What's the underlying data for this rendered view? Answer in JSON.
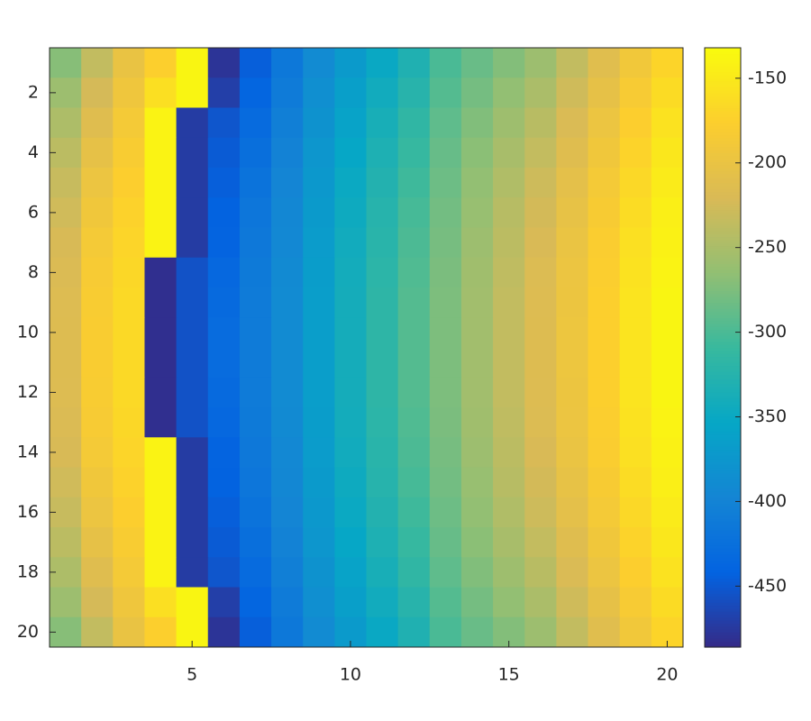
{
  "chart_data": {
    "type": "heatmap",
    "xlim": [
      0.5,
      20.5
    ],
    "ylim": [
      0.5,
      20.5
    ],
    "y_reversed": true,
    "xticks": [
      5,
      10,
      15,
      20
    ],
    "yticks": [
      2,
      4,
      6,
      8,
      10,
      12,
      14,
      16,
      18,
      20
    ],
    "clim": [
      -486,
      -132
    ],
    "cticks": [
      -450,
      -400,
      -350,
      -300,
      -250,
      -200,
      -150
    ],
    "colormap": [
      "#352a87",
      "#0363e1",
      "#1485d4",
      "#06a7c6",
      "#38b99e",
      "#92bf73",
      "#d9ba56",
      "#fcce2e",
      "#f9fb0e"
    ],
    "z": [
      [
        -270,
        -235,
        -200,
        -175,
        -138,
        -478,
        -445,
        -415,
        -390,
        -370,
        -350,
        -330,
        -300,
        -285,
        -272,
        -258,
        -235,
        -212,
        -190,
        -170
      ],
      [
        -258,
        -223,
        -193,
        -160,
        -138,
        -470,
        -438,
        -410,
        -385,
        -364,
        -343,
        -323,
        -295,
        -279,
        -264,
        -249,
        -227,
        -204,
        -183,
        -163
      ],
      [
        -248,
        -213,
        -186,
        -140,
        -472,
        -452,
        -431,
        -405,
        -380,
        -358,
        -337,
        -316,
        -290,
        -273,
        -257,
        -241,
        -219,
        -197,
        -176,
        -157
      ],
      [
        -239,
        -204,
        -181,
        -140,
        -472,
        -448,
        -426,
        -401,
        -376,
        -353,
        -332,
        -311,
        -286,
        -268,
        -251,
        -234,
        -213,
        -191,
        -171,
        -152
      ],
      [
        -232,
        -197,
        -176,
        -140,
        -472,
        -445,
        -421,
        -398,
        -373,
        -349,
        -328,
        -306,
        -283,
        -264,
        -246,
        -228,
        -207,
        -186,
        -166,
        -148
      ],
      [
        -226,
        -191,
        -172,
        -140,
        -472,
        -442,
        -417,
        -395,
        -370,
        -346,
        -324,
        -302,
        -280,
        -261,
        -242,
        -224,
        -203,
        -182,
        -162,
        -144
      ],
      [
        -221,
        -186,
        -169,
        -140,
        -472,
        -440,
        -414,
        -393,
        -368,
        -343,
        -322,
        -299,
        -278,
        -258,
        -239,
        -220,
        -199,
        -179,
        -159,
        -142
      ],
      [
        -218,
        -183,
        -167,
        -482,
        -455,
        -435,
        -412,
        -391,
        -366,
        -341,
        -320,
        -297,
        -276,
        -256,
        -237,
        -217,
        -197,
        -177,
        -157,
        -140
      ],
      [
        -216,
        -181,
        -165,
        -482,
        -455,
        -432,
        -410,
        -390,
        -365,
        -340,
        -318,
        -295,
        -275,
        -255,
        -235,
        -216,
        -196,
        -175,
        -155,
        -138
      ],
      [
        -215,
        -180,
        -165,
        -482,
        -455,
        -430,
        -410,
        -390,
        -365,
        -340,
        -318,
        -295,
        -275,
        -255,
        -235,
        -215,
        -195,
        -175,
        -155,
        -138
      ],
      [
        -215,
        -180,
        -165,
        -482,
        -455,
        -430,
        -410,
        -390,
        -365,
        -340,
        -318,
        -295,
        -275,
        -255,
        -235,
        -215,
        -195,
        -175,
        -155,
        -138
      ],
      [
        -216,
        -181,
        -165,
        -482,
        -455,
        -432,
        -410,
        -390,
        -365,
        -340,
        -318,
        -295,
        -275,
        -255,
        -235,
        -216,
        -196,
        -175,
        -155,
        -138
      ],
      [
        -218,
        -183,
        -167,
        -482,
        -455,
        -435,
        -412,
        -391,
        -366,
        -341,
        -320,
        -297,
        -276,
        -256,
        -237,
        -217,
        -197,
        -177,
        -157,
        -140
      ],
      [
        -221,
        -186,
        -169,
        -140,
        -472,
        -440,
        -414,
        -393,
        -368,
        -343,
        -322,
        -299,
        -278,
        -258,
        -239,
        -220,
        -199,
        -179,
        -159,
        -142
      ],
      [
        -226,
        -191,
        -172,
        -140,
        -472,
        -442,
        -417,
        -395,
        -370,
        -346,
        -324,
        -302,
        -280,
        -261,
        -242,
        -224,
        -203,
        -182,
        -162,
        -144
      ],
      [
        -232,
        -197,
        -176,
        -140,
        -472,
        -445,
        -421,
        -398,
        -373,
        -349,
        -328,
        -306,
        -283,
        -264,
        -246,
        -228,
        -207,
        -186,
        -166,
        -148
      ],
      [
        -239,
        -204,
        -181,
        -140,
        -472,
        -448,
        -426,
        -401,
        -376,
        -353,
        -332,
        -311,
        -286,
        -268,
        -251,
        -234,
        -213,
        -191,
        -171,
        -152
      ],
      [
        -248,
        -213,
        -186,
        -140,
        -472,
        -452,
        -431,
        -405,
        -380,
        -358,
        -337,
        -316,
        -290,
        -273,
        -257,
        -241,
        -219,
        -197,
        -176,
        -157
      ],
      [
        -258,
        -223,
        -193,
        -160,
        -138,
        -470,
        -438,
        -410,
        -385,
        -364,
        -343,
        -323,
        -295,
        -279,
        -264,
        -249,
        -227,
        -204,
        -183,
        -163
      ],
      [
        -270,
        -235,
        -200,
        -175,
        -138,
        -478,
        -445,
        -415,
        -390,
        -370,
        -350,
        -330,
        -300,
        -285,
        -272,
        -258,
        -235,
        -212,
        -190,
        -170
      ]
    ]
  }
}
